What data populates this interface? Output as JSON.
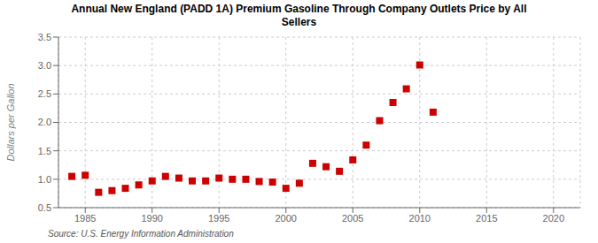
{
  "chart_data": {
    "type": "scatter",
    "title": "Annual New England (PADD 1A) Premium Gasoline Through Company Outlets Price by All\nSellers",
    "y_label": "Dollars per Gallon",
    "annotation": "Source: U.S. Energy Information Administration",
    "color": "#cc0000",
    "marker": "square",
    "grid": true,
    "xlim": [
      1983,
      2022
    ],
    "ylim": [
      0.5,
      3.5
    ],
    "xticks": [
      1985,
      1990,
      1995,
      2000,
      2005,
      2010,
      2015,
      2020
    ],
    "yticks": [
      0.5,
      {
        "value": 1.0,
        "label": "1.0"
      },
      1.5,
      {
        "value": 2.0,
        "label": "2.0"
      },
      2.5,
      {
        "value": 3.0,
        "label": "3.0"
      },
      3.5
    ],
    "x": [
      1984,
      1985,
      1986,
      1987,
      1988,
      1989,
      1990,
      1991,
      1992,
      1993,
      1994,
      1995,
      1996,
      1997,
      1998,
      1999,
      2000,
      2001,
      2002,
      2003,
      2004,
      2005,
      2006,
      2007,
      2008,
      2009,
      2010,
      2011
    ],
    "values": [
      1.05,
      1.07,
      0.77,
      0.8,
      0.84,
      0.9,
      0.97,
      1.05,
      1.02,
      0.97,
      0.97,
      1.02,
      1.0,
      1.0,
      0.96,
      0.95,
      0.84,
      0.93,
      1.28,
      1.22,
      1.14,
      1.34,
      1.6,
      2.03,
      2.35,
      2.59,
      3.01,
      2.18
    ]
  }
}
